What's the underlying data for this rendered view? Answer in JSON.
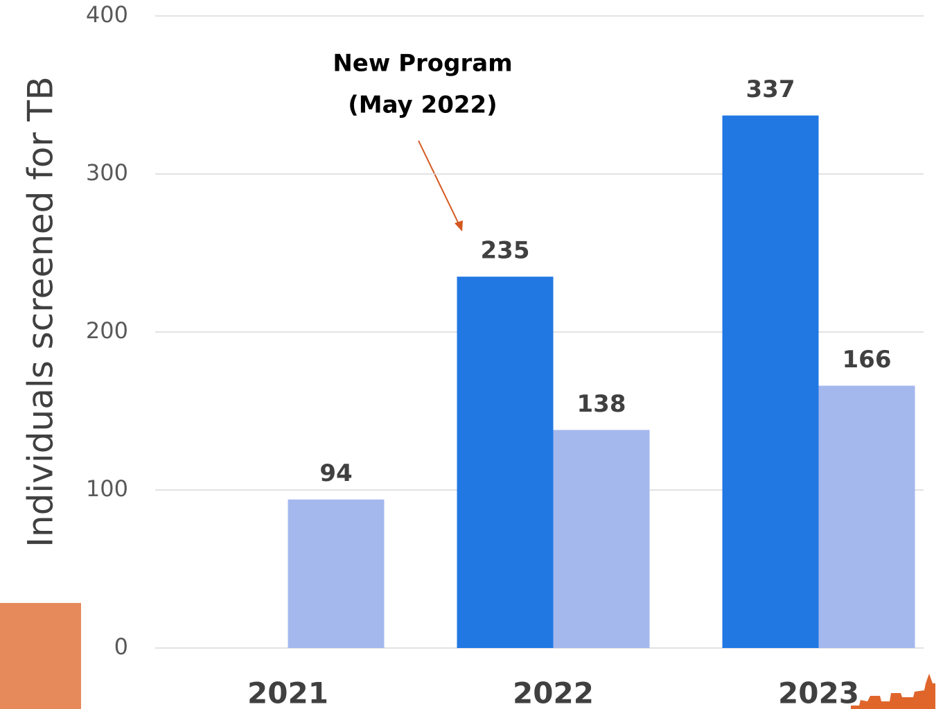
{
  "chart_data": {
    "type": "bar",
    "y_label": "Individuals screened for TB",
    "annotation": [
      "New Program",
      "(May 2022)"
    ],
    "categories": [
      "2021",
      "2022",
      "2023"
    ],
    "series": [
      {
        "color": "#2178e3",
        "values": [
          null,
          235,
          337
        ]
      },
      {
        "color": "#a4b8ee",
        "values": [
          94,
          138,
          166
        ]
      }
    ],
    "ylim": [
      0,
      400
    ],
    "yticks": [
      0,
      100,
      200,
      300,
      400
    ],
    "grid": true
  }
}
